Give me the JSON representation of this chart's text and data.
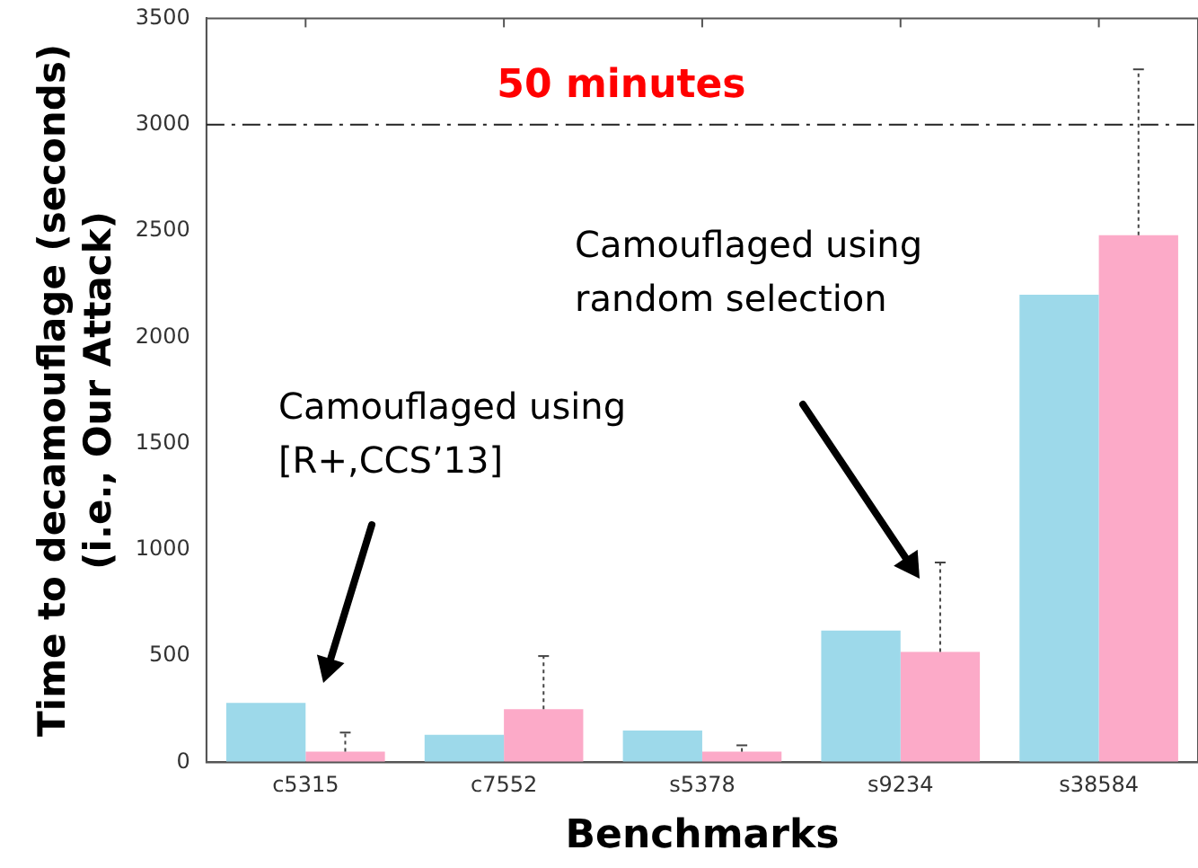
{
  "chart_data": {
    "type": "bar",
    "xlabel": "Benchmarks",
    "ylabel": "Time to decamouflage (seconds)\n(i.e., Our Attack)",
    "categories": [
      "c5315",
      "c7552",
      "s5378",
      "s9234",
      "s38584"
    ],
    "series": [
      {
        "color": "#9dd9ea",
        "values": [
          280,
          130,
          150,
          620,
          2200
        ]
      },
      {
        "color": "#fcaac8",
        "values": [
          50,
          250,
          50,
          520,
          2480
        ],
        "errors": [
          [
            50,
            140
          ],
          [
            250,
            500
          ],
          [
            50,
            80
          ],
          [
            520,
            940
          ],
          [
            2480,
            3260
          ]
        ]
      }
    ],
    "ylim": [
      0,
      3500
    ],
    "yticks": [
      0,
      500,
      1000,
      1500,
      2000,
      2500,
      3000,
      3500
    ],
    "grid": false,
    "legend": false,
    "ref_lines": [
      {
        "axis": "y",
        "value": 3000,
        "label": "50 minutes",
        "line_style": "dashdot"
      }
    ],
    "annotations": [
      "Camouflaged using\n[R+,CCS’13]",
      "Camouflaged using\nrandom selection"
    ]
  }
}
